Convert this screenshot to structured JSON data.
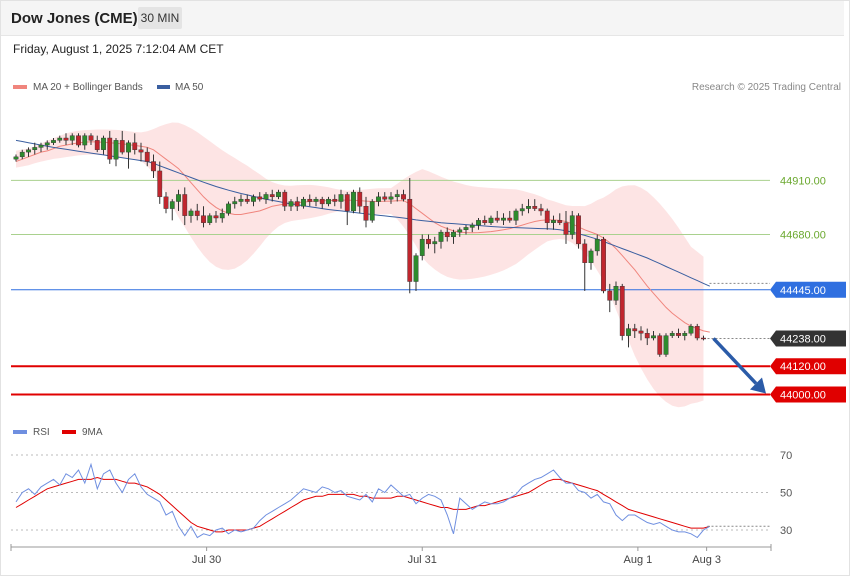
{
  "header": {
    "title": "Dow Jones (CME)",
    "timeframe": "30 MIN"
  },
  "datetime": "Friday, August 1, 2025 7:12:04 AM CET",
  "credit": "Research © 2025 Trading Central",
  "colors": {
    "up": "#2e8b2e",
    "down": "#c0262e",
    "ma20": "#f0857d",
    "ma50": "#3a5fa0",
    "band_fill": "#fde3e3",
    "resistance": "#a9d18e",
    "pivot": "#2f6fe0",
    "support": "#e00000",
    "rsi": "#6f8fe0",
    "rsi_ma": "#e00000",
    "arrow": "#2b5ba8",
    "current": "#333333"
  },
  "chart_data": [
    {
      "type": "candlestick",
      "legend": [
        {
          "name": "MA 20 + Bollinger Bands",
          "color": "#f0857d"
        },
        {
          "name": "MA 50",
          "color": "#3a5fa0"
        }
      ],
      "ylim": [
        43900,
        45260
      ],
      "x_ticks": [
        "Jul 30",
        "Jul 31",
        "Aug 1",
        "Aug 3"
      ],
      "levels": [
        {
          "value": 44910,
          "label": "44910.00",
          "kind": "resistance"
        },
        {
          "value": 44680,
          "label": "44680.00",
          "kind": "resistance"
        },
        {
          "value": 44445,
          "label": "44445.00",
          "kind": "pivot"
        },
        {
          "value": 44238,
          "label": "44238.00",
          "kind": "current"
        },
        {
          "value": 44120,
          "label": "44120.00",
          "kind": "support"
        },
        {
          "value": 44000,
          "label": "44000.00",
          "kind": "support"
        }
      ],
      "forecast": {
        "from": 44238,
        "to": 44000,
        "direction": "down"
      },
      "candles": [
        [
          45000,
          45020,
          44990,
          45010
        ],
        [
          45010,
          45040,
          45000,
          45030
        ],
        [
          45030,
          45050,
          45010,
          45040
        ],
        [
          45040,
          45070,
          45020,
          45050
        ],
        [
          45050,
          45070,
          45030,
          45060
        ],
        [
          45060,
          45080,
          45040,
          45070
        ],
        [
          45070,
          45090,
          45060,
          45080
        ],
        [
          45080,
          45100,
          45070,
          45090
        ],
        [
          45090,
          45110,
          45060,
          45080
        ],
        [
          45080,
          45110,
          45060,
          45100
        ],
        [
          45100,
          45110,
          45050,
          45060
        ],
        [
          45060,
          45110,
          45040,
          45100
        ],
        [
          45100,
          45110,
          45060,
          45080
        ],
        [
          45080,
          45100,
          45030,
          45040
        ],
        [
          45040,
          45100,
          45020,
          45090
        ],
        [
          45090,
          45120,
          44980,
          45000
        ],
        [
          45000,
          45090,
          44970,
          45080
        ],
        [
          45080,
          45120,
          45020,
          45030
        ],
        [
          45030,
          45080,
          44960,
          45070
        ],
        [
          45070,
          45110,
          45020,
          45040
        ],
        [
          45040,
          45070,
          44990,
          45030
        ],
        [
          45030,
          45050,
          44970,
          44990
        ],
        [
          44990,
          45020,
          44920,
          44950
        ],
        [
          44950,
          44990,
          44810,
          44840
        ],
        [
          44840,
          44860,
          44770,
          44790
        ],
        [
          44790,
          44830,
          44740,
          44820
        ],
        [
          44820,
          44870,
          44780,
          44850
        ],
        [
          44850,
          44880,
          44720,
          44760
        ],
        [
          44760,
          44790,
          44730,
          44780
        ],
        [
          44780,
          44810,
          44740,
          44760
        ],
        [
          44760,
          44800,
          44710,
          44730
        ],
        [
          44730,
          44770,
          44720,
          44760
        ],
        [
          44760,
          44780,
          44730,
          44750
        ],
        [
          44750,
          44790,
          44730,
          44770
        ],
        [
          44770,
          44820,
          44760,
          44810
        ],
        [
          44810,
          44840,
          44790,
          44820
        ],
        [
          44820,
          44850,
          44800,
          44830
        ],
        [
          44830,
          44850,
          44810,
          44820
        ],
        [
          44820,
          44850,
          44800,
          44840
        ],
        [
          44840,
          44860,
          44820,
          44830
        ],
        [
          44830,
          44860,
          44810,
          44850
        ],
        [
          44850,
          44870,
          44820,
          44840
        ],
        [
          44840,
          44870,
          44830,
          44860
        ],
        [
          44860,
          44870,
          44780,
          44800
        ],
        [
          44800,
          44830,
          44780,
          44820
        ],
        [
          44820,
          44840,
          44780,
          44800
        ],
        [
          44800,
          44840,
          44790,
          44830
        ],
        [
          44830,
          44850,
          44800,
          44820
        ],
        [
          44820,
          44840,
          44800,
          44830
        ],
        [
          44830,
          44840,
          44790,
          44810
        ],
        [
          44810,
          44840,
          44800,
          44830
        ],
        [
          44830,
          44850,
          44800,
          44820
        ],
        [
          44820,
          44870,
          44790,
          44850
        ],
        [
          44850,
          44860,
          44720,
          44780
        ],
        [
          44780,
          44870,
          44770,
          44860
        ],
        [
          44860,
          44880,
          44770,
          44800
        ],
        [
          44800,
          44840,
          44710,
          44740
        ],
        [
          44740,
          44830,
          44730,
          44820
        ],
        [
          44820,
          44860,
          44800,
          44840
        ],
        [
          44840,
          44860,
          44820,
          44830
        ],
        [
          44830,
          44860,
          44810,
          44840
        ],
        [
          44840,
          44870,
          44820,
          44850
        ],
        [
          44850,
          44870,
          44820,
          44830
        ],
        [
          44830,
          44920,
          44430,
          44480
        ],
        [
          44480,
          44600,
          44440,
          44590
        ],
        [
          44590,
          44680,
          44570,
          44660
        ],
        [
          44660,
          44680,
          44620,
          44640
        ],
        [
          44640,
          44670,
          44600,
          44650
        ],
        [
          44650,
          44700,
          44620,
          44690
        ],
        [
          44690,
          44710,
          44650,
          44670
        ],
        [
          44670,
          44700,
          44640,
          44690
        ],
        [
          44690,
          44710,
          44670,
          44700
        ],
        [
          44700,
          44720,
          44680,
          44710
        ],
        [
          44710,
          44730,
          44690,
          44720
        ],
        [
          44720,
          44750,
          44700,
          44740
        ],
        [
          44740,
          44760,
          44720,
          44730
        ],
        [
          44730,
          44760,
          44720,
          44750
        ],
        [
          44750,
          44780,
          44730,
          44740
        ],
        [
          44740,
          44770,
          44720,
          44750
        ],
        [
          44750,
          44780,
          44730,
          44740
        ],
        [
          44740,
          44790,
          44720,
          44780
        ],
        [
          44780,
          44810,
          44760,
          44790
        ],
        [
          44790,
          44830,
          44770,
          44800
        ],
        [
          44800,
          44830,
          44780,
          44790
        ],
        [
          44790,
          44810,
          44760,
          44780
        ],
        [
          44780,
          44790,
          44700,
          44730
        ],
        [
          44730,
          44760,
          44700,
          44740
        ],
        [
          44740,
          44770,
          44720,
          44730
        ],
        [
          44730,
          44780,
          44640,
          44680
        ],
        [
          44680,
          44780,
          44660,
          44760
        ],
        [
          44760,
          44770,
          44620,
          44640
        ],
        [
          44640,
          44660,
          44440,
          44560
        ],
        [
          44560,
          44620,
          44530,
          44610
        ],
        [
          44610,
          44680,
          44590,
          44660
        ],
        [
          44660,
          44670,
          44430,
          44440
        ],
        [
          44440,
          44470,
          44350,
          44400
        ],
        [
          44400,
          44480,
          44380,
          44460
        ],
        [
          44460,
          44470,
          44230,
          44250
        ],
        [
          44250,
          44300,
          44200,
          44280
        ],
        [
          44280,
          44300,
          44240,
          44270
        ],
        [
          44270,
          44290,
          44230,
          44260
        ],
        [
          44260,
          44280,
          44210,
          44240
        ],
        [
          44240,
          44270,
          44230,
          44250
        ],
        [
          44250,
          44260,
          44160,
          44170
        ],
        [
          44170,
          44260,
          44160,
          44250
        ],
        [
          44250,
          44270,
          44240,
          44260
        ],
        [
          44260,
          44280,
          44240,
          44250
        ],
        [
          44250,
          44270,
          44230,
          44260
        ],
        [
          44260,
          44300,
          44250,
          44290
        ],
        [
          44290,
          44300,
          44230,
          44240
        ],
        [
          44240,
          44250,
          44230,
          44238
        ]
      ],
      "ma20": [
        44990,
        45000,
        45010,
        45020,
        45030,
        45035,
        45045,
        45055,
        45060,
        45065,
        45070,
        45072,
        45074,
        45073,
        45072,
        45070,
        45068,
        45065,
        45062,
        45058,
        45055,
        45050,
        45040,
        45020,
        45000,
        44980,
        44960,
        44930,
        44900,
        44870,
        44840,
        44815,
        44795,
        44780,
        44770,
        44765,
        44765,
        44770,
        44775,
        44780,
        44790,
        44800,
        44805,
        44810,
        44812,
        44815,
        44818,
        44820,
        44822,
        44823,
        44824,
        44825,
        44826,
        44826,
        44825,
        44824,
        44822,
        44820,
        44820,
        44821,
        44822,
        44823,
        44824,
        44810,
        44790,
        44770,
        44750,
        44730,
        44715,
        44705,
        44695,
        44690,
        44688,
        44687,
        44688,
        44690,
        44692,
        44696,
        44700,
        44705,
        44712,
        44720,
        44728,
        44735,
        44740,
        44742,
        44742,
        44740,
        44735,
        44725,
        44712,
        44700,
        44690,
        44680,
        44665,
        44645,
        44620,
        44590,
        44560,
        44530,
        44495,
        44460,
        44430,
        44400,
        44370,
        44345,
        44325,
        44305,
        44290,
        44280,
        44270,
        44265
      ],
      "ma50": [
        45080,
        45075,
        45070,
        45065,
        45060,
        45055,
        45050,
        45046,
        45042,
        45038,
        45034,
        45030,
        45026,
        45022,
        45018,
        45014,
        45010,
        45006,
        45002,
        44998,
        44994,
        44990,
        44982,
        44972,
        44962,
        44952,
        44942,
        44932,
        44922,
        44912,
        44902,
        44893,
        44884,
        44876,
        44868,
        44861,
        44854,
        44848,
        44842,
        44836,
        44830,
        44825,
        44820,
        44815,
        44810,
        44806,
        44802,
        44798,
        44794,
        44790,
        44786,
        44783,
        44780,
        44777,
        44774,
        44771,
        44768,
        44765,
        44762,
        44759,
        44756,
        44753,
        44750,
        44746,
        44742,
        44739,
        44736,
        44733,
        44730,
        44728,
        44726,
        44724,
        44722,
        44720,
        44718,
        44716,
        44714,
        44712,
        44711,
        44710,
        44709,
        44708,
        44707,
        44706,
        44705,
        44704,
        44703,
        44700,
        44696,
        44690,
        44683,
        44676,
        44668,
        44660,
        44650,
        44640,
        44630,
        44620,
        44610,
        44600,
        44590,
        44580,
        44568,
        44556,
        44544,
        44532,
        44520,
        44508,
        44496,
        44484,
        44472,
        44460
      ]
    },
    {
      "type": "line",
      "legend": [
        {
          "name": "RSI",
          "color": "#6f8fe0"
        },
        {
          "name": "9MA",
          "color": "#e00000"
        }
      ],
      "ylim": [
        22,
        78
      ],
      "y_ticks": [
        30,
        50,
        70
      ],
      "rsi": [
        45,
        50,
        52,
        49,
        53,
        55,
        57,
        54,
        60,
        58,
        62,
        55,
        65,
        52,
        60,
        62,
        55,
        50,
        57,
        60,
        53,
        49,
        47,
        45,
        38,
        40,
        32,
        27,
        32,
        26,
        28,
        27,
        30,
        31,
        28,
        30,
        29,
        30,
        31,
        35,
        38,
        40,
        42,
        44,
        46,
        49,
        52,
        51,
        50,
        53,
        52,
        50,
        51,
        48,
        47,
        46,
        49,
        45,
        52,
        50,
        54,
        51,
        48,
        49,
        44,
        47,
        49,
        48,
        46,
        38,
        28,
        47,
        44,
        41,
        43,
        45,
        44,
        44,
        45,
        47,
        49,
        53,
        55,
        57,
        58,
        60,
        62,
        58,
        55,
        55,
        51,
        50,
        47,
        49,
        45,
        44,
        38,
        35,
        38,
        38,
        36,
        34,
        33,
        34,
        32,
        30,
        29,
        29,
        28,
        26,
        30,
        32
      ],
      "ma9": [
        42,
        44,
        46,
        48,
        50,
        52,
        53,
        54,
        55,
        56,
        57,
        57,
        57,
        58,
        57,
        57,
        57,
        56,
        55,
        55,
        54,
        53,
        51,
        49,
        46,
        43,
        40,
        37,
        34,
        32,
        31,
        30,
        29,
        29,
        30,
        30,
        30,
        30,
        31,
        32,
        34,
        36,
        38,
        40,
        42,
        44,
        46,
        47,
        48,
        48,
        49,
        49,
        49,
        49,
        49,
        48,
        48,
        47,
        47,
        47,
        47,
        48,
        48,
        47,
        46,
        45,
        44,
        43,
        42,
        42,
        41,
        41,
        41,
        42,
        43,
        43,
        44,
        45,
        46,
        47,
        48,
        49,
        50,
        52,
        54,
        56,
        57,
        57,
        56,
        55,
        54,
        53,
        52,
        51,
        49,
        47,
        45,
        43,
        41,
        40,
        39,
        38,
        37,
        36,
        35,
        34,
        33,
        32,
        31,
        31,
        31,
        32
      ]
    }
  ]
}
